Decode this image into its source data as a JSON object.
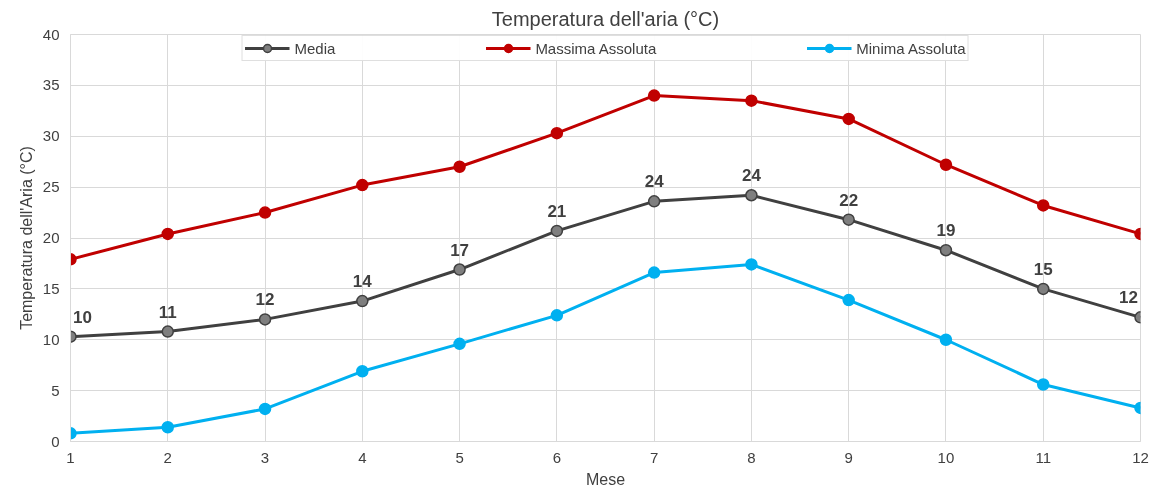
{
  "chart_data": {
    "type": "line",
    "title": "Temperatura dell'aria (°C)",
    "xlabel": "Mese",
    "ylabel": "Temperatura dell'Aria (°C)",
    "x": [
      1,
      2,
      3,
      4,
      5,
      6,
      7,
      8,
      9,
      10,
      11,
      12
    ],
    "series": [
      {
        "name": "Media",
        "color": "#404040",
        "values": [
          10.3,
          10.8,
          12.0,
          13.8,
          16.9,
          20.7,
          23.6,
          24.2,
          21.8,
          18.8,
          15.0,
          12.2
        ],
        "value_labels": [
          "10",
          "11",
          "12",
          "14",
          "17",
          "21",
          "24",
          "24",
          "22",
          "19",
          "15",
          "12"
        ]
      },
      {
        "name": "Massima Assoluta",
        "color": "#c00000",
        "values": [
          17.9,
          20.4,
          22.5,
          25.2,
          27.0,
          30.3,
          34.0,
          33.5,
          31.7,
          27.2,
          23.2,
          20.4
        ]
      },
      {
        "name": "Minima Assoluta",
        "color": "#00b0f0",
        "values": [
          0.8,
          1.4,
          3.2,
          6.9,
          9.6,
          12.4,
          16.6,
          17.4,
          13.9,
          10.0,
          5.6,
          3.3
        ]
      }
    ],
    "xlim": [
      1,
      12
    ],
    "xticks": [
      1,
      2,
      3,
      4,
      5,
      6,
      7,
      8,
      9,
      10,
      11,
      12
    ],
    "ylim": [
      0,
      40
    ],
    "yticks": [
      0,
      5,
      10,
      15,
      20,
      25,
      30,
      35,
      40
    ],
    "grid": true,
    "legend": "top",
    "marker": "circle",
    "line_style": "solid"
  }
}
